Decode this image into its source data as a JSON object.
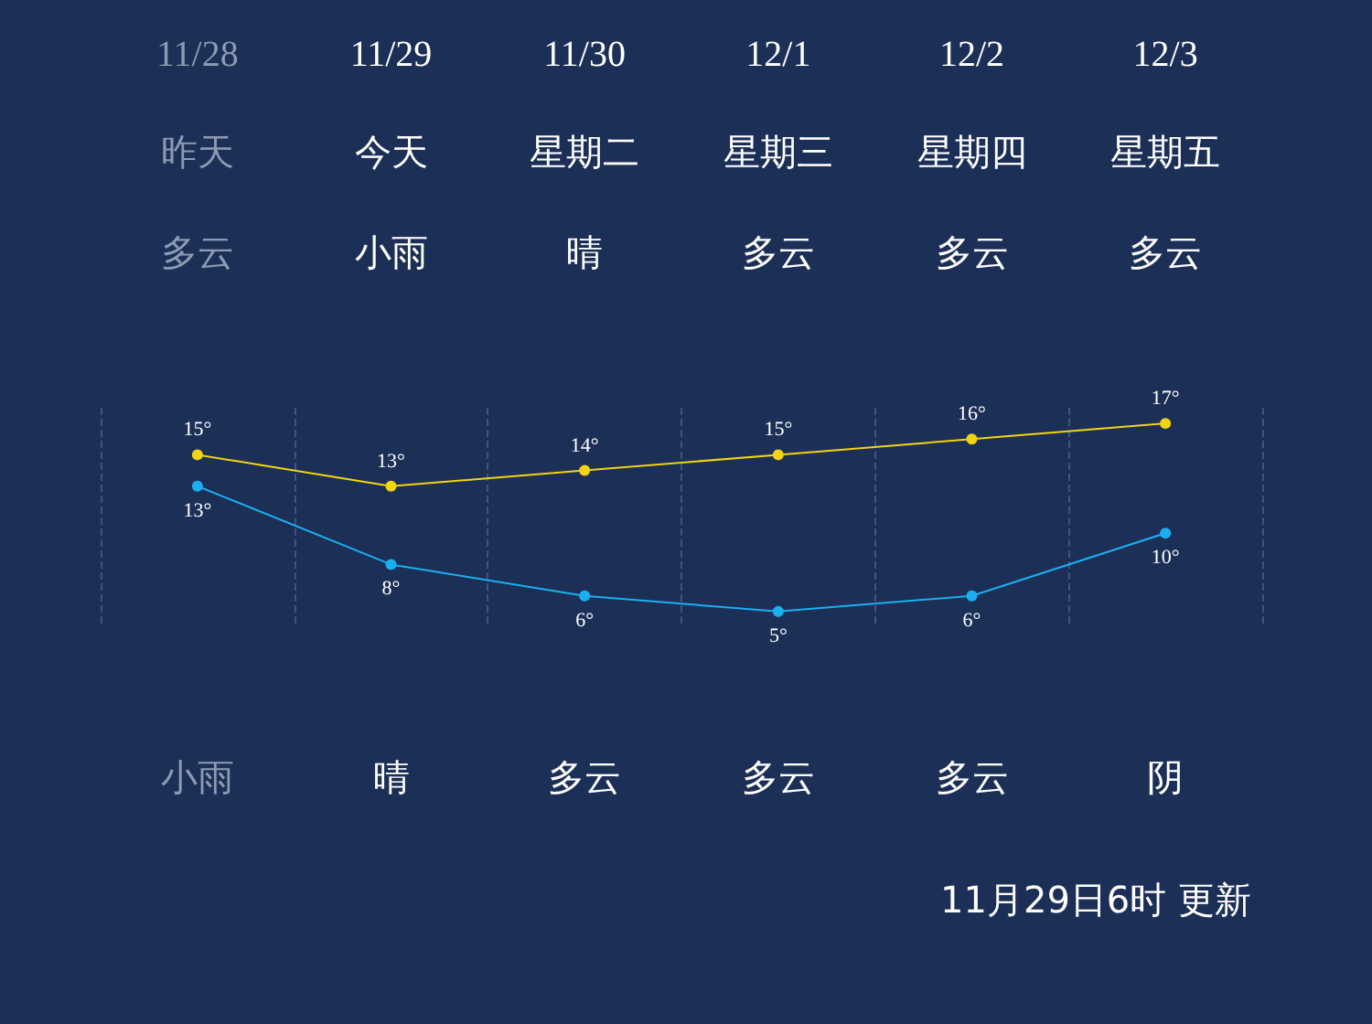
{
  "chart_data": {
    "type": "line",
    "categories": [
      "11/28",
      "11/29",
      "11/30",
      "12/1",
      "12/2",
      "12/3"
    ],
    "series": [
      {
        "color": "#f2d50f",
        "values": [
          15,
          13,
          14,
          15,
          16,
          17
        ],
        "value_labels": [
          "15°",
          "13°",
          "14°",
          "15°",
          "16°",
          "17°"
        ]
      },
      {
        "color": "#1ab0f0",
        "values": [
          13,
          8,
          6,
          5,
          6,
          10
        ],
        "value_labels": [
          "13°",
          "8°",
          "6°",
          "5°",
          "6°",
          "10°"
        ]
      }
    ],
    "marker": "circle",
    "grid": "x",
    "annotations": [
      "昨天",
      "多云",
      "小雨",
      "今天",
      "小雨",
      "晴",
      "星期二",
      "晴",
      "多云",
      "星期三",
      "多云",
      "多云",
      "星期四",
      "多云",
      "多云",
      "星期五",
      "多云",
      "阴",
      "11月29日6时 更新"
    ]
  }
}
